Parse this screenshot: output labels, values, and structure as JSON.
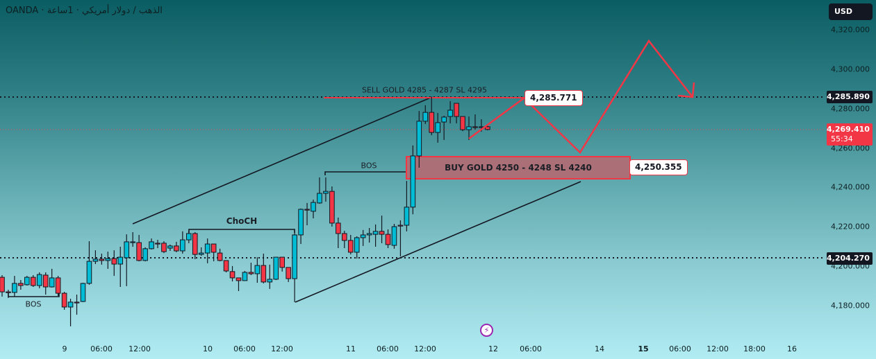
{
  "header": {
    "title": "OANDA · الذهب / دولار أمريكي · 1ساعة",
    "currency": "USD"
  },
  "price_axis": {
    "ticks": [
      "4,320.000",
      "4,300.000",
      "4,280.000",
      "4,260.000",
      "4,240.000",
      "4,220.000",
      "4,200.000",
      "4,180.000"
    ],
    "tick_values": [
      4320,
      4300,
      4280,
      4260,
      4240,
      4220,
      4200,
      4180
    ],
    "marker_high": "4,285.890",
    "marker_low": "4,204.270",
    "last_price": "4,269.410",
    "countdown": "55:34",
    "last_price_color": "#f23645"
  },
  "time_axis": {
    "ticks": [
      "9",
      "06:00",
      "12:00",
      "10",
      "06:00",
      "12:00",
      "11",
      "06:00",
      "12:00",
      "12",
      "06:00",
      "14",
      "15",
      "06:00",
      "12:00",
      "18:00",
      "16"
    ]
  },
  "annotations": {
    "sell_text": "SELL GOLD 4285 - 4287 SL 4295",
    "buy_text": "BUY GOLD 4250 - 4248 SL 4240",
    "sell_callout": "4,285.771",
    "buy_callout": "4,250.355",
    "bos_low": "BOS",
    "choch": "ChoCH",
    "bos_high": "BOS",
    "event_icon": "lightning-icon"
  },
  "colors": {
    "up": "#00bcd4",
    "down": "#f23645",
    "drawing": "#f23645",
    "zone_fill": "#ab6f78"
  },
  "chart_data": {
    "type": "candlestick",
    "ohlc": [
      [
        4194.4,
        4195.5,
        4184.6,
        4187.0
      ],
      [
        4187.0,
        4188.1,
        4183.9,
        4186.7
      ],
      [
        4186.7,
        4195.1,
        4184.6,
        4191.3
      ],
      [
        4191.3,
        4193.0,
        4188.1,
        4190.2
      ],
      [
        4190.6,
        4195.1,
        4190.2,
        4194.4
      ],
      [
        4194.4,
        4195.5,
        4189.5,
        4190.2
      ],
      [
        4190.2,
        4196.9,
        4188.8,
        4195.8
      ],
      [
        4195.5,
        4196.9,
        4185.6,
        4189.5
      ],
      [
        4189.5,
        4198.7,
        4189.2,
        4194.1
      ],
      [
        4194.1,
        4195.1,
        4184.9,
        4186.3
      ],
      [
        4186.3,
        4187.0,
        4177.9,
        4179.3
      ],
      [
        4179.3,
        4183.5,
        4169.5,
        4181.8
      ],
      [
        4181.8,
        4185.6,
        4175.4,
        4181.6
      ],
      [
        4182.1,
        4191.6,
        4181.8,
        4191.3
      ],
      [
        4191.3,
        4212.7,
        4190.6,
        4202.5
      ],
      [
        4202.5,
        4208.1,
        4201.1,
        4203.6
      ],
      [
        4203.6,
        4206.4,
        4200.8,
        4202.9
      ],
      [
        4202.9,
        4207.4,
        4198.7,
        4203.9
      ],
      [
        4203.9,
        4208.1,
        4195.1,
        4201.1
      ],
      [
        4201.1,
        4209.9,
        4189.5,
        4204.6
      ],
      [
        4204.3,
        4216.2,
        4189.9,
        4212.4
      ],
      [
        4212.0,
        4217.3,
        4209.9,
        4212.4
      ],
      [
        4212.0,
        4215.9,
        4202.5,
        4202.9
      ],
      [
        4202.9,
        4209.6,
        4202.5,
        4208.9
      ],
      [
        4208.9,
        4214.1,
        4208.5,
        4212.4
      ],
      [
        4211.7,
        4213.4,
        4209.2,
        4211.3
      ],
      [
        4211.7,
        4212.7,
        4206.7,
        4207.4
      ],
      [
        4209.2,
        4211.0,
        4207.8,
        4210.3
      ],
      [
        4210.3,
        4212.4,
        4207.1,
        4207.8
      ],
      [
        4207.8,
        4217.7,
        4206.4,
        4213.4
      ],
      [
        4213.4,
        4218.0,
        4211.7,
        4216.6
      ],
      [
        4216.6,
        4217.3,
        4203.6,
        4206.0
      ],
      [
        4206.0,
        4209.6,
        4205.3,
        4206.7
      ],
      [
        4206.7,
        4214.1,
        4201.5,
        4211.3
      ],
      [
        4211.3,
        4211.3,
        4202.5,
        4207.1
      ],
      [
        4206.7,
        4208.9,
        4202.5,
        4202.9
      ],
      [
        4202.9,
        4202.9,
        4196.9,
        4197.6
      ],
      [
        4197.3,
        4200.1,
        4192.3,
        4194.1
      ],
      [
        4194.1,
        4194.1,
        4187.4,
        4192.7
      ],
      [
        4192.7,
        4197.6,
        4192.7,
        4196.9
      ],
      [
        4196.9,
        4201.8,
        4195.5,
        4196.2
      ],
      [
        4196.2,
        4204.6,
        4191.6,
        4200.4
      ],
      [
        4200.4,
        4206.4,
        4191.3,
        4192.0
      ],
      [
        4192.0,
        4200.8,
        4188.5,
        4193.4
      ],
      [
        4193.4,
        4204.6,
        4193.0,
        4204.6
      ],
      [
        4204.6,
        4204.6,
        4197.3,
        4199.4
      ],
      [
        4199.4,
        4199.4,
        4192.0,
        4193.7
      ],
      [
        4193.7,
        4218.4,
        4181.8,
        4215.9
      ],
      [
        4215.9,
        4229.3,
        4211.3,
        4228.9
      ],
      [
        4228.9,
        4232.1,
        4220.8,
        4228.6
      ],
      [
        4227.9,
        4233.8,
        4224.3,
        4232.4
      ],
      [
        4232.1,
        4245.1,
        4231.7,
        4237.0
      ],
      [
        4237.0,
        4245.1,
        4232.8,
        4238.0
      ],
      [
        4238.0,
        4240.5,
        4220.1,
        4221.9
      ],
      [
        4221.9,
        4224.7,
        4209.2,
        4216.6
      ],
      [
        4216.6,
        4218.0,
        4209.2,
        4213.1
      ],
      [
        4213.1,
        4215.9,
        4206.0,
        4207.1
      ],
      [
        4207.1,
        4215.2,
        4203.9,
        4214.5
      ],
      [
        4214.5,
        4218.4,
        4210.3,
        4215.9
      ],
      [
        4215.9,
        4219.4,
        4212.0,
        4216.6
      ],
      [
        4216.2,
        4221.2,
        4209.9,
        4217.7
      ],
      [
        4217.7,
        4225.7,
        4211.7,
        4216.2
      ],
      [
        4216.2,
        4218.7,
        4209.2,
        4211.0
      ],
      [
        4210.6,
        4221.5,
        4208.9,
        4220.1
      ],
      [
        4220.8,
        4223.3,
        4205.0,
        4220.5
      ],
      [
        4220.8,
        4243.3,
        4217.7,
        4230.0
      ],
      [
        4230.0,
        4261.3,
        4226.4,
        4256.0
      ],
      [
        4256.0,
        4278.8,
        4250.0,
        4273.6
      ],
      [
        4273.6,
        4281.7,
        4272.2,
        4278.1
      ],
      [
        4278.1,
        4285.9,
        4266.5,
        4267.9
      ],
      [
        4267.9,
        4277.8,
        4262.7,
        4272.9
      ],
      [
        4273.2,
        4276.4,
        4264.1,
        4275.7
      ],
      [
        4276.0,
        4283.8,
        4272.5,
        4279.2
      ],
      [
        4282.7,
        4282.7,
        4272.5,
        4276.0
      ],
      [
        4276.0,
        4276.0,
        4268.6,
        4269.3
      ],
      [
        4269.3,
        4276.0,
        4264.1,
        4270.8
      ],
      [
        4270.8,
        4277.1,
        4269.3,
        4270.6
      ],
      [
        4270.6,
        4274.6,
        4268.3,
        4270.8
      ],
      [
        4270.8,
        4271.8,
        4269.0,
        4269.4
      ]
    ],
    "ylim": [
      4170,
      4330
    ],
    "horizontal_levels": [
      4285.89,
      4204.27
    ],
    "grid": false
  }
}
